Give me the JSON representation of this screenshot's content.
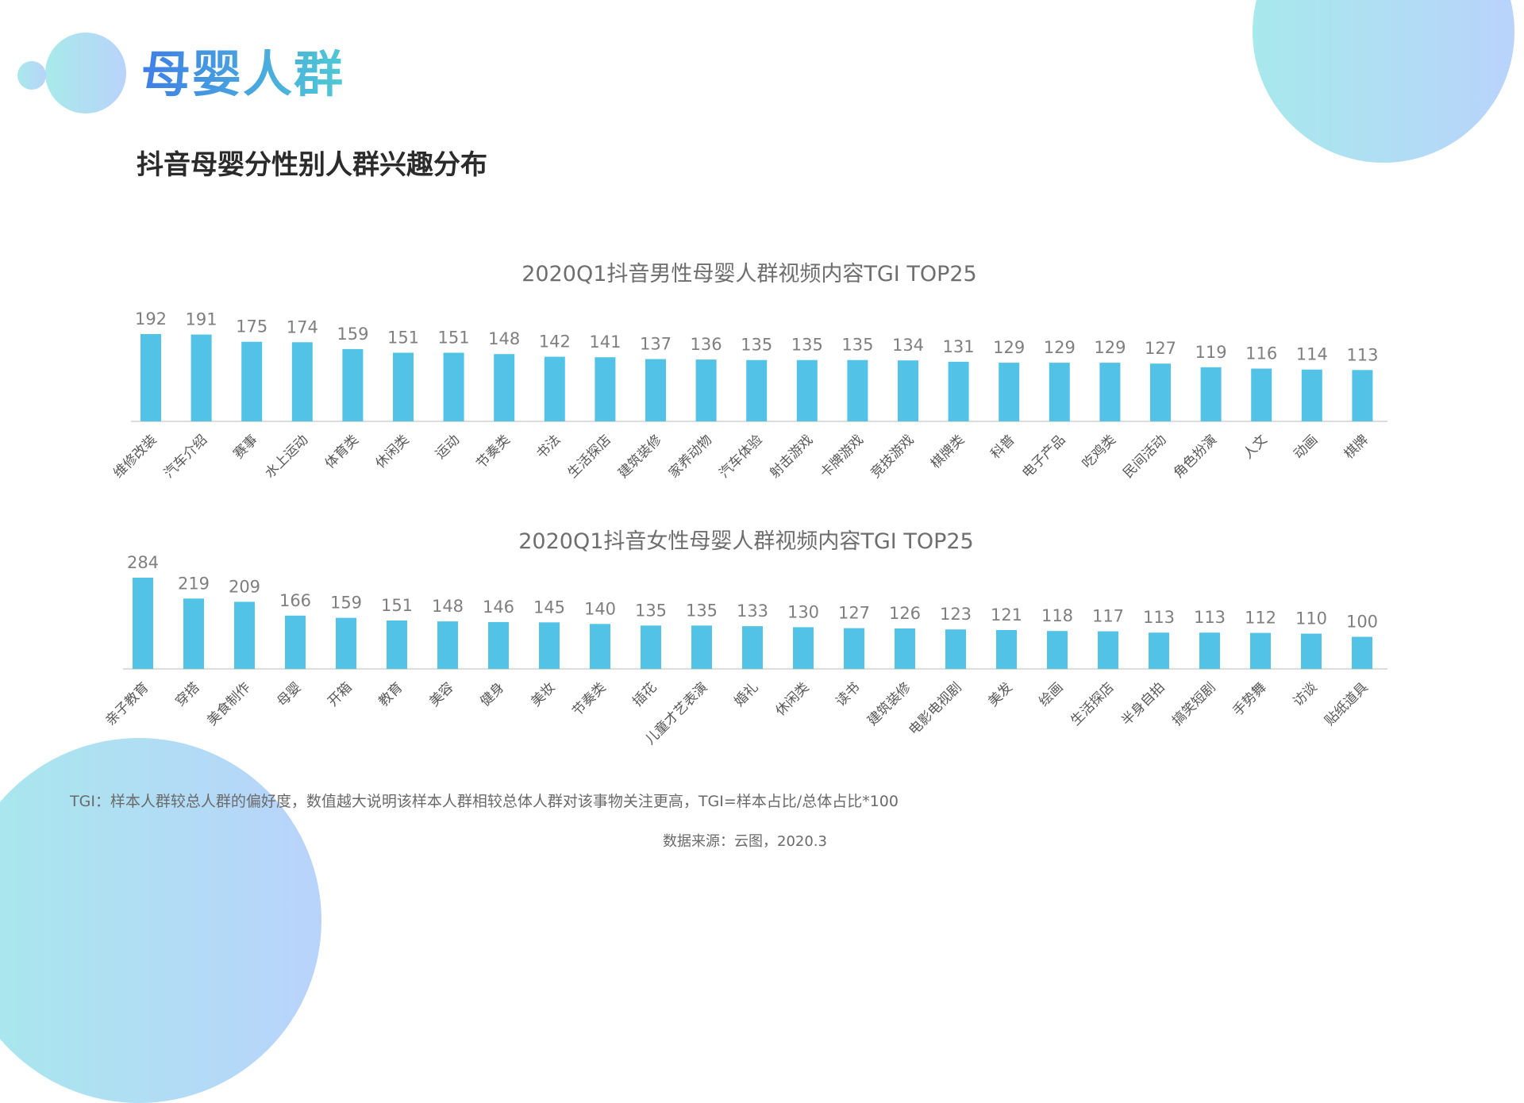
{
  "header": {
    "title": "母婴人群",
    "subtitle": "抖音母婴分性别人群兴趣分布"
  },
  "colors": {
    "bar": "#52c3e6",
    "axis": "#d0d0d0",
    "value_label": "#7f7f7f",
    "category_label": "#595959",
    "chart_title": "#6e6e6e"
  },
  "chart_data": [
    {
      "type": "bar",
      "title": "2020Q1抖音男性母婴人群视频内容TGI TOP25",
      "categories": [
        "维修改装",
        "汽车介绍",
        "赛事",
        "水上运动",
        "体育类",
        "休闲类",
        "运动",
        "节奏类",
        "书法",
        "生活探店",
        "建筑装修",
        "家养动物",
        "汽车体验",
        "射击游戏",
        "卡牌游戏",
        "竞技游戏",
        "棋牌类",
        "科普",
        "电子产品",
        "吃鸡类",
        "民间活动",
        "角色扮演",
        "人文",
        "动画",
        "棋牌"
      ],
      "values": [
        192,
        191,
        175,
        174,
        159,
        151,
        151,
        148,
        142,
        141,
        137,
        136,
        135,
        135,
        135,
        134,
        131,
        129,
        129,
        129,
        127,
        119,
        116,
        114,
        113
      ],
      "xlabel": "",
      "ylabel": "",
      "ylim": [
        0,
        200
      ],
      "legend": "none",
      "grid": false
    },
    {
      "type": "bar",
      "title": "2020Q1抖音女性母婴人群视频内容TGI TOP25",
      "categories": [
        "亲子教育",
        "穿搭",
        "美食制作",
        "母婴",
        "开箱",
        "教育",
        "美容",
        "健身",
        "美妆",
        "节奏类",
        "插花",
        "儿童才艺表演",
        "婚礼",
        "休闲类",
        "读书",
        "建筑装修",
        "电影电视剧",
        "美发",
        "绘画",
        "生活探店",
        "半身自拍",
        "搞笑短剧",
        "手势舞",
        "访谈",
        "贴纸道具"
      ],
      "values": [
        284,
        219,
        209,
        166,
        159,
        151,
        148,
        146,
        145,
        140,
        135,
        135,
        133,
        130,
        127,
        126,
        123,
        121,
        118,
        117,
        113,
        113,
        112,
        110,
        100
      ],
      "xlabel": "",
      "ylabel": "",
      "ylim": [
        0,
        300
      ],
      "legend": "none",
      "grid": false
    }
  ],
  "footer": {
    "tgi_note": "TGI：样本人群较总人群的偏好度，数值越大说明该样本人群相较总体人群对该事物关注更高，TGI=样本占比/总体占比*100",
    "source": "数据来源：云图，2020.3"
  }
}
